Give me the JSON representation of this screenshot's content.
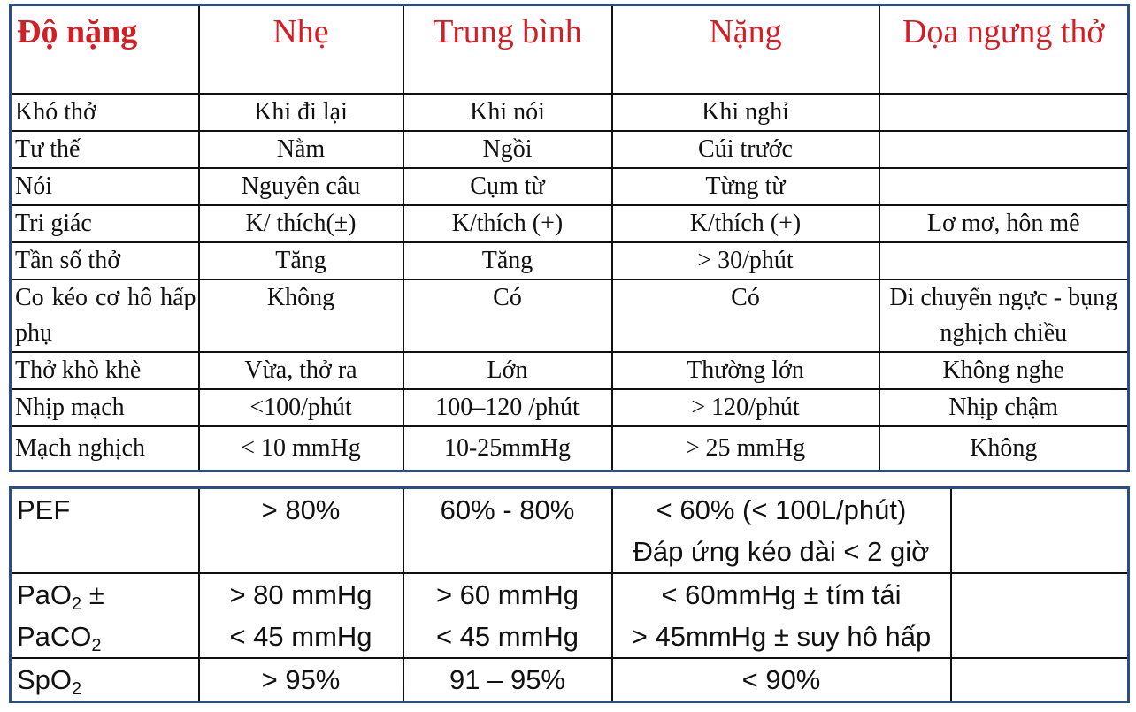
{
  "severity_table": {
    "headers": [
      "Độ nặng",
      "Nhẹ",
      "Trung bình",
      "Nặng",
      "Dọa ngưng thở"
    ],
    "rows": [
      [
        "Khó thở",
        "Khi đi lại",
        "Khi nói",
        "Khi nghỉ",
        ""
      ],
      [
        "Tư thế",
        "Nằm",
        "Ngồi",
        "Cúi trước",
        ""
      ],
      [
        "Nói",
        "Nguyên câu",
        "Cụm từ",
        "Từng từ",
        ""
      ],
      [
        "Tri giác",
        "K/ thích(±)",
        "K/thích (+)",
        "K/thích (+)",
        "Lơ mơ, hôn mê"
      ],
      [
        "Tần số thở",
        "Tăng",
        "Tăng",
        "> 30/phút",
        ""
      ],
      [
        "Co kéo cơ hô hấp phụ",
        "Không",
        "Có",
        "Có",
        "Di chuyển ngực - bụng nghịch chiều"
      ],
      [
        "Thở khò khè",
        "Vừa, thở ra",
        "Lớn",
        "Thường lớn",
        "Không nghe"
      ],
      [
        "Nhịp mạch",
        "<100/phút",
        "100–120 /phút",
        "> 120/phút",
        "Nhịp chậm"
      ],
      [
        "Mạch nghịch",
        "< 10 mmHg",
        "10-25mmHg",
        "> 25 mmHg",
        "Không"
      ]
    ]
  },
  "lab_table": {
    "pef": {
      "label": "PEF",
      "mild": "> 80%",
      "moderate": "60% - 80%",
      "severe_line1": "< 60% (< 100L/phút)",
      "severe_line2": "Đáp ứng kéo dài < 2 giờ",
      "arrest": ""
    },
    "gas": {
      "pao2_prefix": "PaO",
      "pao2_sub": "2",
      "pao2_suffix": " ±",
      "paco2_prefix": "PaCO",
      "paco2_sub": "2",
      "mild_line1": "> 80 mmHg",
      "mild_line2": "< 45 mmHg",
      "moderate_line1": "> 60 mmHg",
      "moderate_line2": "< 45 mmHg",
      "severe_line1": "< 60mmHg ± tím tái",
      "severe_line2": "> 45mmHg ± suy hô hấp",
      "arrest": ""
    },
    "spo2": {
      "label_prefix": "SpO",
      "label_sub": "2",
      "mild": "> 95%",
      "moderate": "91 – 95%",
      "severe": "< 90%",
      "arrest": ""
    }
  },
  "colors": {
    "header_text": "#d21f26",
    "table_frame": "#2b4d86",
    "grid_lines": "#111111"
  }
}
